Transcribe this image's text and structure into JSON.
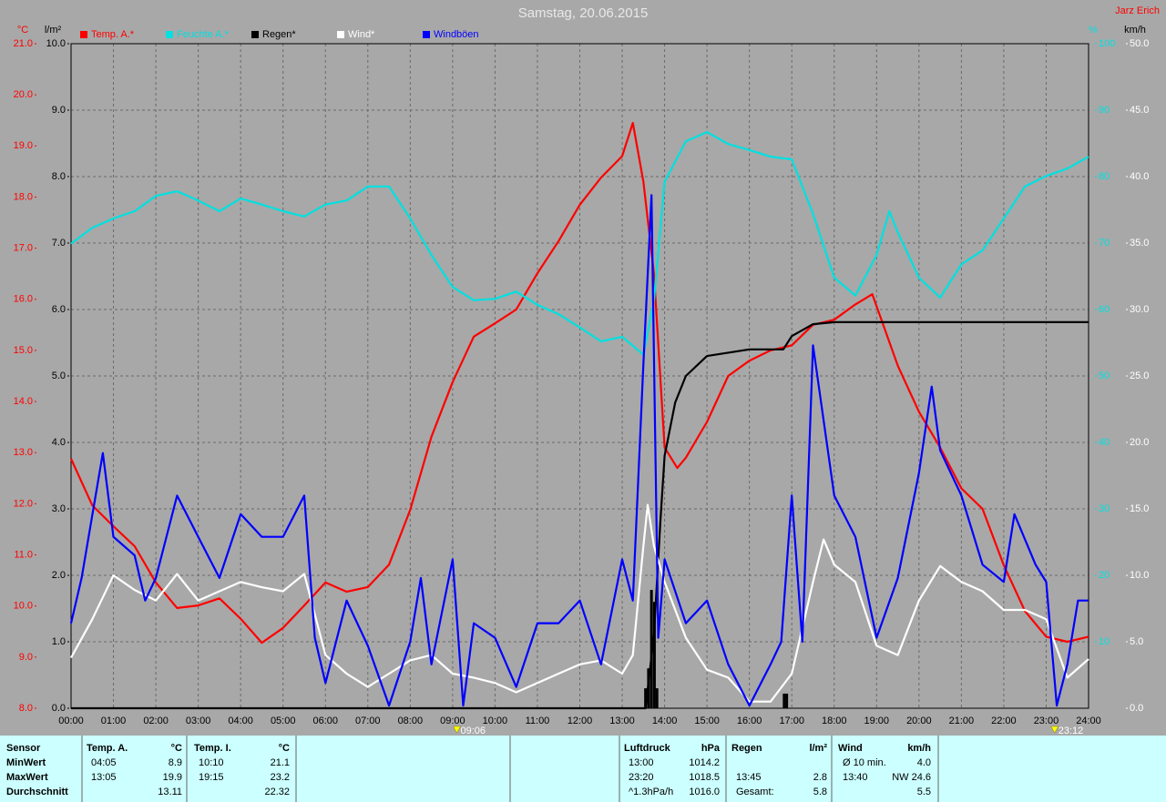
{
  "chart_data": {
    "type": "line",
    "title": "Samstag, 20.06.2015",
    "author": "Jarz Erich",
    "xlim": [
      0,
      24
    ],
    "xticks": [
      {
        "value": 0,
        "label": "00:00"
      },
      {
        "value": 1,
        "label": "01:00"
      },
      {
        "value": 2,
        "label": "02:00"
      },
      {
        "value": 3,
        "label": "03:00"
      },
      {
        "value": 4,
        "label": "04:00"
      },
      {
        "value": 5,
        "label": "05:00"
      },
      {
        "value": 6,
        "label": "06:00"
      },
      {
        "value": 7,
        "label": "07:00"
      },
      {
        "value": 8,
        "label": "08:00"
      },
      {
        "value": 9,
        "label": "09:00"
      },
      {
        "value": 10,
        "label": "10:00"
      },
      {
        "value": 11,
        "label": "11:00"
      },
      {
        "value": 12,
        "label": "12:00"
      },
      {
        "value": 13,
        "label": "13:00"
      },
      {
        "value": 14,
        "label": "14:00"
      },
      {
        "value": 15,
        "label": "15:00"
      },
      {
        "value": 16,
        "label": "16:00"
      },
      {
        "value": 17,
        "label": "17:00"
      },
      {
        "value": 18,
        "label": "18:00"
      },
      {
        "value": 19,
        "label": "19:00"
      },
      {
        "value": 20,
        "label": "20:00"
      },
      {
        "value": 21,
        "label": "21:00"
      },
      {
        "value": 22,
        "label": "22:00"
      },
      {
        "value": 23,
        "label": "23:00"
      },
      {
        "value": 24,
        "label": "24:00"
      }
    ],
    "ylabel": "°C",
    "ylim": [
      8,
      21
    ],
    "yticks": [
      {
        "value": 21,
        "label": "21.0"
      },
      {
        "value": 20,
        "label": "20.0"
      },
      {
        "value": 19,
        "label": "19.0"
      },
      {
        "value": 18,
        "label": "18.0"
      },
      {
        "value": 17,
        "label": "17.0"
      },
      {
        "value": 16,
        "label": "16.0"
      },
      {
        "value": 15,
        "label": "15.0"
      },
      {
        "value": 14,
        "label": "14.0"
      },
      {
        "value": 13,
        "label": "13.0"
      },
      {
        "value": 12,
        "label": "12.0"
      },
      {
        "value": 11,
        "label": "11.0"
      },
      {
        "value": 10,
        "label": "10.0"
      },
      {
        "value": 9,
        "label": "9.0"
      },
      {
        "value": 8,
        "label": "8.0"
      }
    ],
    "y2label": "l/m²",
    "y2lim": [
      0,
      10
    ],
    "y2ticks": [
      {
        "value": 10,
        "label": "10.0"
      },
      {
        "value": 9,
        "label": "9.0"
      },
      {
        "value": 8,
        "label": "8.0"
      },
      {
        "value": 7,
        "label": "7.0"
      },
      {
        "value": 6,
        "label": "6.0"
      },
      {
        "value": 5,
        "label": "5.0"
      },
      {
        "value": 4,
        "label": "4.0"
      },
      {
        "value": 3,
        "label": "3.0"
      },
      {
        "value": 2,
        "label": "2.0"
      },
      {
        "value": 1,
        "label": "1.0"
      },
      {
        "value": 0,
        "label": "0.0"
      }
    ],
    "y3label": "%",
    "y3lim": [
      0,
      100
    ],
    "y3ticks": [
      100,
      90,
      80,
      70,
      60,
      50,
      40,
      30,
      20,
      10
    ],
    "y4label": "km/h",
    "y4lim": [
      0,
      50
    ],
    "y4ticks": [
      {
        "value": 50,
        "label": "50.0"
      },
      {
        "value": 45,
        "label": "45.0"
      },
      {
        "value": 40,
        "label": "40.0"
      },
      {
        "value": 35,
        "label": "35.0"
      },
      {
        "value": 30,
        "label": "30.0"
      },
      {
        "value": 25,
        "label": "25.0"
      },
      {
        "value": 20,
        "label": "20.0"
      },
      {
        "value": 15,
        "label": "15.0"
      },
      {
        "value": 10,
        "label": "10.0"
      },
      {
        "value": 5,
        "label": "5.0"
      },
      {
        "value": 0,
        "label": "0.0"
      }
    ],
    "grid": true,
    "series": [
      {
        "name": "Temp. A.*",
        "color": "#ff0000",
        "axis": "y",
        "x": [
          0,
          0.5,
          1,
          1.5,
          2,
          2.5,
          3,
          3.5,
          4,
          4.5,
          5,
          5.5,
          6,
          6.5,
          7,
          7.5,
          8,
          8.5,
          9,
          9.5,
          10,
          10.5,
          11,
          11.5,
          12,
          12.5,
          13,
          13.25,
          13.5,
          13.75,
          14,
          14.3,
          14.5,
          15,
          15.5,
          16,
          16.5,
          17,
          17.5,
          18,
          18.5,
          18.9,
          19.5,
          20,
          20.5,
          21,
          21.5,
          22,
          22.5,
          23,
          23.5,
          24
        ],
        "values": [
          12.88,
          11.97,
          11.56,
          11.17,
          10.46,
          9.96,
          10.01,
          10.15,
          9.75,
          9.28,
          9.57,
          10.01,
          10.46,
          10.28,
          10.37,
          10.81,
          11.88,
          13.31,
          14.38,
          15.27,
          15.53,
          15.8,
          16.51,
          17.14,
          17.85,
          18.38,
          18.8,
          19.45,
          18.3,
          16.5,
          13.1,
          12.7,
          12.9,
          13.6,
          14.5,
          14.8,
          15.0,
          15.1,
          15.5,
          15.6,
          15.9,
          16.1,
          14.7,
          13.8,
          13.1,
          12.3,
          11.9,
          10.8,
          9.9,
          9.4,
          9.3,
          9.4
        ]
      },
      {
        "name": "Feuchte A.*",
        "color": "#00e0e0",
        "axis": "y3",
        "x": [
          0,
          0.5,
          1,
          1.5,
          2,
          2.5,
          3,
          3.5,
          4,
          4.5,
          5,
          5.5,
          6,
          6.5,
          7,
          7.5,
          8,
          8.5,
          9,
          9.5,
          10,
          10.5,
          11,
          11.5,
          12,
          12.5,
          13,
          13.5,
          13.75,
          14,
          14.5,
          15,
          15.5,
          16,
          16.5,
          17,
          17.5,
          18,
          18.5,
          19,
          19.3,
          19.5,
          20,
          20.5,
          21,
          21.5,
          22,
          22.5,
          23,
          23.5,
          24
        ],
        "values": [
          69.9,
          72.3,
          73.7,
          74.8,
          77.1,
          77.8,
          76.4,
          74.8,
          76.7,
          75.8,
          74.8,
          74.0,
          75.8,
          76.4,
          78.5,
          78.5,
          73.7,
          68.2,
          63.4,
          61.4,
          61.6,
          62.7,
          60.7,
          59.3,
          57.3,
          55.2,
          55.9,
          53.2,
          61.4,
          79.2,
          85.3,
          86.7,
          84.9,
          84.0,
          83.0,
          82.6,
          74.4,
          64.8,
          62.1,
          68.2,
          74.8,
          71.6,
          64.8,
          61.8,
          66.8,
          68.9,
          73.7,
          78.5,
          80.1,
          81.2,
          83.0
        ]
      },
      {
        "name": "Regen*",
        "color": "#000000",
        "axis": "y2",
        "x": [
          0,
          13.55,
          13.75,
          13.9,
          14,
          14.25,
          14.5,
          15,
          16,
          16.8,
          17,
          17.5,
          18,
          24
        ],
        "values": [
          0,
          0,
          1.1,
          2.8,
          3.8,
          4.6,
          5.0,
          5.3,
          5.4,
          5.4,
          5.6,
          5.78,
          5.81,
          5.81
        ],
        "bars": {
          "x": [
            13.55,
            13.62,
            13.69,
            13.76,
            13.82,
            16.82,
            16.88
          ],
          "values": [
            0.3,
            0.6,
            1.78,
            1.6,
            0.3,
            0.22,
            0.22
          ]
        }
      },
      {
        "name": "Wind*",
        "color": "#ffffff",
        "axis": "y4",
        "x": [
          0,
          0.5,
          1,
          1.5,
          2,
          2.5,
          3,
          3.5,
          4,
          4.5,
          5,
          5.5,
          6,
          6.5,
          7,
          7.5,
          8,
          8.5,
          9,
          9.5,
          10,
          10.5,
          11,
          11.5,
          12,
          12.5,
          13,
          13.25,
          13.5,
          13.6,
          13.75,
          14,
          14.5,
          15,
          15.5,
          16,
          16.5,
          17,
          17.5,
          17.75,
          18,
          18.5,
          19,
          19.5,
          20,
          20.5,
          21,
          21.5,
          22,
          22.5,
          23,
          23.5,
          24
        ],
        "values": [
          3.8,
          6.7,
          10.0,
          8.9,
          8.1,
          10.1,
          8.1,
          8.8,
          9.5,
          9.1,
          8.8,
          10.1,
          4.0,
          2.6,
          1.6,
          2.6,
          3.6,
          4.0,
          2.6,
          2.3,
          1.9,
          1.2,
          1.9,
          2.6,
          3.3,
          3.6,
          2.6,
          4.0,
          12.2,
          15.3,
          12.2,
          9.5,
          5.3,
          2.9,
          2.3,
          0.5,
          0.5,
          2.6,
          9.5,
          12.7,
          10.8,
          9.5,
          4.7,
          4.0,
          8.1,
          10.7,
          9.5,
          8.8,
          7.4,
          7.4,
          6.7,
          2.3,
          3.7
        ]
      },
      {
        "name": "Windböen",
        "color": "#0000ff",
        "axis": "y4",
        "x": [
          0,
          0.25,
          0.75,
          1,
          1.5,
          1.75,
          2,
          2.5,
          3,
          3.5,
          4,
          4.5,
          5,
          5.5,
          5.75,
          6,
          6.5,
          7,
          7.5,
          8,
          8.25,
          8.5,
          9,
          9.25,
          9.5,
          10,
          10.5,
          11,
          11.5,
          12,
          12.5,
          13,
          13.25,
          13.5,
          13.69,
          13.85,
          14,
          14.5,
          15,
          15.5,
          16,
          16.5,
          16.75,
          17,
          17.25,
          17.5,
          18,
          18.5,
          19,
          19.5,
          20,
          20.3,
          20.5,
          21,
          21.5,
          22,
          22.25,
          22.75,
          23,
          23.25,
          23.5,
          23.75,
          24
        ],
        "values": [
          6.4,
          9.8,
          19.2,
          12.9,
          11.5,
          8.1,
          9.8,
          16.0,
          12.9,
          9.8,
          14.6,
          12.9,
          12.9,
          16.0,
          5.3,
          1.9,
          8.1,
          4.7,
          0.2,
          5.0,
          9.8,
          3.3,
          11.2,
          0.2,
          6.4,
          5.3,
          1.6,
          6.4,
          6.4,
          8.1,
          3.3,
          11.2,
          8.1,
          25.9,
          38.6,
          5.3,
          11.2,
          6.4,
          8.1,
          3.3,
          0.2,
          3.3,
          5.0,
          16.0,
          5.0,
          27.3,
          16.0,
          12.9,
          5.3,
          9.8,
          17.7,
          24.2,
          19.4,
          16.0,
          10.8,
          9.5,
          14.6,
          10.8,
          9.5,
          0.2,
          3.3,
          8.1,
          8.1
        ]
      }
    ],
    "markers": [
      {
        "x": 9.1,
        "label": "09:06"
      },
      {
        "x": 23.2,
        "label": "23:12"
      }
    ]
  },
  "table": {
    "row_labels": [
      "Sensor",
      "MinWert",
      "MaxWert",
      "Durchschnitt"
    ],
    "groups": [
      {
        "header": "Temp. A.",
        "unit": "°C",
        "rows": [
          {
            "time": "04:05",
            "value": "8.9"
          },
          {
            "time": "13:05",
            "value": "19.9"
          },
          {
            "value": "13.11"
          }
        ]
      },
      {
        "header": "Temp. I.",
        "unit": "°C",
        "rows": [
          {
            "time": "10:10",
            "value": "21.1"
          },
          {
            "time": "19:15",
            "value": "23.2"
          },
          {
            "value": "22.32"
          }
        ]
      },
      {
        "header": "Luftdruck",
        "unit": "hPa",
        "rows": [
          {
            "time": "13:00",
            "value": "1014.2"
          },
          {
            "time": "23:20",
            "value": "1018.5"
          },
          {
            "time": "^1.3hPa/h",
            "value": "1016.0"
          }
        ]
      },
      {
        "header": "Regen",
        "unit": "l/m²",
        "rows": [
          null,
          {
            "time": "13:45",
            "value": "2.8"
          },
          {
            "time": "Gesamt:",
            "value": "5.8"
          }
        ]
      },
      {
        "header": "Wind",
        "unit": "km/h",
        "rows": [
          {
            "time": "Ø 10 min.",
            "value": "4.0"
          },
          {
            "time": "13:40",
            "value": "NW 24.6"
          },
          {
            "value": "5.5"
          }
        ]
      }
    ]
  }
}
